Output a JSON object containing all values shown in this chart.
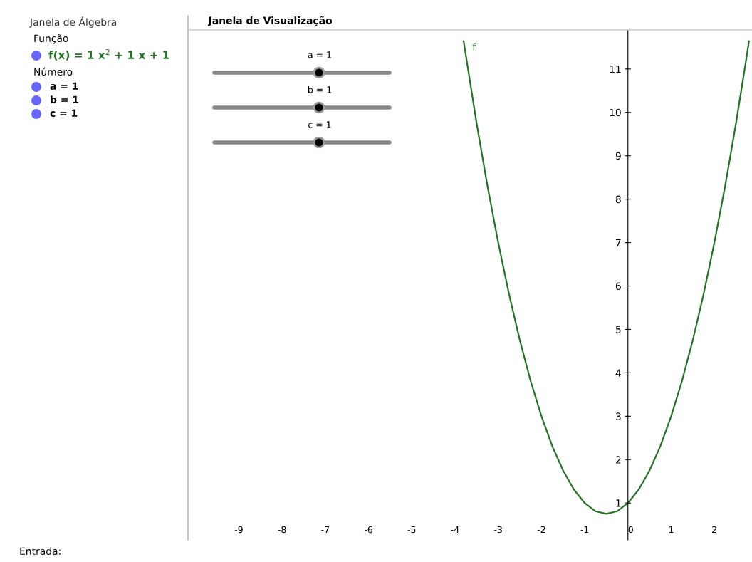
{
  "chart_data": {
    "type": "line",
    "title": "Janela de Visualização",
    "x": [
      -3.8,
      -3.5,
      -3.25,
      -3,
      -2.75,
      -2.5,
      -2.25,
      -2,
      -1.75,
      -1.5,
      -1.25,
      -1,
      -0.75,
      -0.5,
      -0.25,
      0,
      0.25,
      0.5,
      0.75,
      1,
      1.25,
      1.5,
      1.75,
      2,
      2.25,
      2.5,
      2.75,
      2.8
    ],
    "series": [
      {
        "name": "f",
        "color": "#267326",
        "values": [
          11.64,
          9.75,
          8.31,
          7,
          5.81,
          4.75,
          3.81,
          3,
          2.31,
          1.75,
          1.31,
          1,
          0.81,
          0.75,
          0.81,
          1,
          1.31,
          1.75,
          2.31,
          3,
          3.81,
          4.75,
          5.81,
          7,
          8.31,
          9.75,
          11.31,
          11.64
        ]
      }
    ],
    "xlim": [
      -10.16,
      2.87
    ],
    "ylim": [
      0.15,
      11.9
    ],
    "xticks": [
      -9,
      -8,
      -7,
      -6,
      -5,
      -4,
      -3,
      -2,
      -1,
      0,
      1,
      2
    ],
    "yticks": [
      1,
      2,
      3,
      4,
      5,
      6,
      7,
      8,
      9,
      10,
      11
    ],
    "grid": false,
    "legend": false,
    "marker": "none",
    "line_style": "solid",
    "annotations": [
      "a = 1",
      "b = 1",
      "c = 1",
      "Janela de Álgebra",
      "Função",
      "f(x) = 1 x$^{2}$ + 1 x + 1",
      "Número",
      "a = 1",
      "b = 1",
      "c = 1",
      "Entrada:"
    ]
  }
}
